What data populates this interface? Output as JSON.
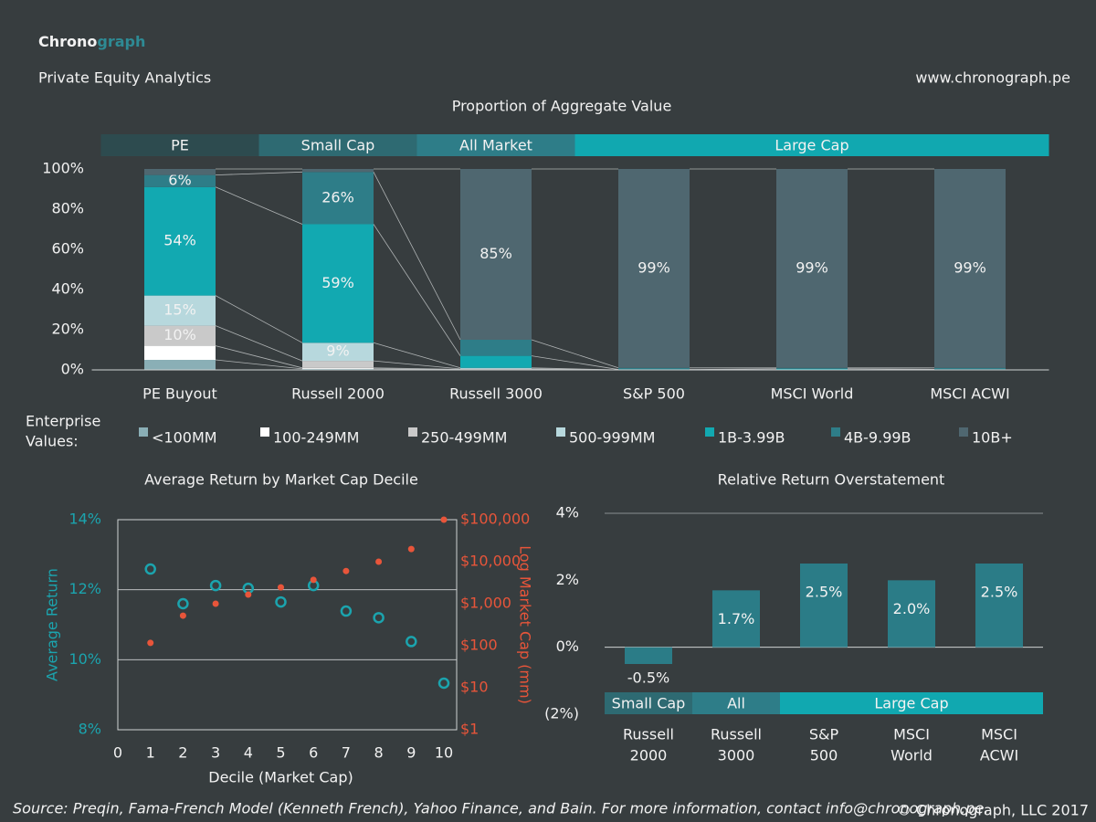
{
  "header": {
    "logo_left": "Chrono",
    "logo_right": "graph",
    "subtitle": "Private Equity Analytics",
    "url": "www.chronograph.pe"
  },
  "footer": {
    "source": "Source: Preqin, Fama-French Model (Kenneth French), Yahoo Finance, and Bain. For more information, contact info@chronograph.pe.",
    "copyright": "© Chronograph, LLC  2017"
  },
  "chart_data": [
    {
      "type": "bar",
      "stacked": true,
      "title": "Proportion of Aggregate Value",
      "categories": [
        "PE Buyout",
        "Russell 2000",
        "Russell 3000",
        "S&P 500",
        "MSCI World",
        "MSCI ACWI"
      ],
      "groups": [
        {
          "label": "PE",
          "start": 0,
          "end": 0,
          "color": "#2d4b4f"
        },
        {
          "label": "Small Cap",
          "start": 1,
          "end": 1,
          "color": "#2e6a72"
        },
        {
          "label": "All Market",
          "start": 2,
          "end": 2,
          "color": "#2e7d88"
        },
        {
          "label": "Large Cap",
          "start": 3,
          "end": 5,
          "color": "#11a8b0"
        }
      ],
      "legend_title": [
        "Enterprise",
        "Values:"
      ],
      "series": [
        {
          "name": "<100MM",
          "color": "#8aafb6",
          "values": [
            5,
            0.5,
            0.2,
            0,
            0,
            0
          ],
          "value_labels": [
            null,
            null,
            null,
            null,
            null,
            null
          ]
        },
        {
          "name": "100-249MM",
          "color": "#ffffff",
          "values": [
            7,
            0.5,
            0.1,
            0,
            0,
            0
          ],
          "value_labels": [
            null,
            null,
            null,
            null,
            null,
            null
          ]
        },
        {
          "name": "250-499MM",
          "color": "#c9c9c9",
          "values": [
            10,
            3.5,
            0.2,
            0,
            0,
            0
          ],
          "value_labels": [
            "10%",
            null,
            null,
            null,
            null,
            null
          ]
        },
        {
          "name": "500-999MM",
          "color": "#b7d8dd",
          "values": [
            15,
            9,
            0.5,
            0,
            0,
            0
          ],
          "value_labels": [
            "15%",
            "9%",
            null,
            null,
            null,
            null
          ]
        },
        {
          "name": "1B-3.99B",
          "color": "#12a9b1",
          "values": [
            54,
            59,
            6,
            0.2,
            0.5,
            0.3
          ],
          "value_labels": [
            "54%",
            "59%",
            null,
            null,
            null,
            null
          ]
        },
        {
          "name": "4B-9.99B",
          "color": "#2e7d88",
          "values": [
            6,
            26,
            8,
            0.8,
            0.5,
            0.7
          ],
          "value_labels": [
            "6%",
            "26%",
            null,
            null,
            null,
            null
          ]
        },
        {
          "name": "10B+",
          "color": "#4f6770",
          "values": [
            3,
            1.5,
            85,
            99,
            99,
            99
          ],
          "value_labels": [
            null,
            null,
            "85%",
            "99%",
            "99%",
            "99%"
          ]
        }
      ],
      "ylim": [
        0,
        100
      ],
      "yticks": [
        {
          "value": 0,
          "label": "0%"
        },
        {
          "value": 20,
          "label": "20%"
        },
        {
          "value": 40,
          "label": "40%"
        },
        {
          "value": 60,
          "label": "60%"
        },
        {
          "value": 80,
          "label": "80%"
        },
        {
          "value": 100,
          "label": "100%"
        }
      ],
      "grid": false
    },
    {
      "type": "scatter",
      "title": "Average Return by Market Cap Decile",
      "x_label": "Decile (Market Cap)",
      "x": [
        1,
        2,
        3,
        4,
        5,
        6,
        7,
        8,
        9,
        10
      ],
      "series": [
        {
          "name": "Average Return",
          "color": "#1ba4ae",
          "marker": "circle-open",
          "values": [
            12.59,
            11.6,
            12.12,
            12.04,
            11.65,
            12.12,
            11.39,
            11.2,
            10.52,
            9.33
          ]
        },
        {
          "name": "Log Market Cap (mm)",
          "color": "#e8553a",
          "marker": "dot",
          "axis": "y2",
          "values": [
            117,
            520,
            1000,
            1650,
            2450,
            3700,
            6000,
            10000,
            20000,
            100000
          ]
        }
      ],
      "xlim": [
        0,
        10
      ],
      "xticks": [
        0,
        1,
        2,
        3,
        4,
        5,
        6,
        7,
        8,
        9,
        10
      ],
      "ylim": [
        8,
        14
      ],
      "yticks": [
        {
          "value": 8,
          "label": "8%"
        },
        {
          "value": 10,
          "label": "10%"
        },
        {
          "value": 12,
          "label": "12%"
        },
        {
          "value": 14,
          "label": "14%"
        }
      ],
      "y2lim": [
        1,
        100000
      ],
      "y2_log": true,
      "y2ticks": [
        {
          "value": 1,
          "label": "$1"
        },
        {
          "value": 10,
          "label": "$10"
        },
        {
          "value": 100,
          "label": "$100"
        },
        {
          "value": 1000,
          "label": "$1,000"
        },
        {
          "value": 10000,
          "label": "$10,000"
        },
        {
          "value": 100000,
          "label": "$100,000"
        }
      ],
      "grid": true
    },
    {
      "type": "bar",
      "title": "Relative Return Overstatement",
      "categories": [
        [
          "Russell",
          "2000"
        ],
        [
          "Russell",
          "3000"
        ],
        [
          "S&P",
          "500"
        ],
        [
          "MSCI",
          "World"
        ],
        [
          "MSCI",
          "ACWI"
        ]
      ],
      "groups": [
        {
          "label": "Small Cap",
          "start": 0,
          "end": 0,
          "color": "#2e6a72"
        },
        {
          "label": "All",
          "start": 1,
          "end": 1,
          "color": "#2e7d88"
        },
        {
          "label": "Large Cap",
          "start": 2,
          "end": 4,
          "color": "#11a8b0"
        }
      ],
      "values": [
        -0.5,
        1.7,
        2.5,
        2.0,
        2.5
      ],
      "value_labels": [
        "-0.5%",
        "1.7%",
        "2.5%",
        "2.0%",
        "2.5%"
      ],
      "color": "#2b7c87",
      "ylim": [
        -2,
        4
      ],
      "yticks": [
        {
          "value": -2,
          "label": "(2%)"
        },
        {
          "value": 0,
          "label": "0%"
        },
        {
          "value": 2,
          "label": "2%"
        },
        {
          "value": 4,
          "label": "4%"
        }
      ],
      "grid": false
    }
  ]
}
